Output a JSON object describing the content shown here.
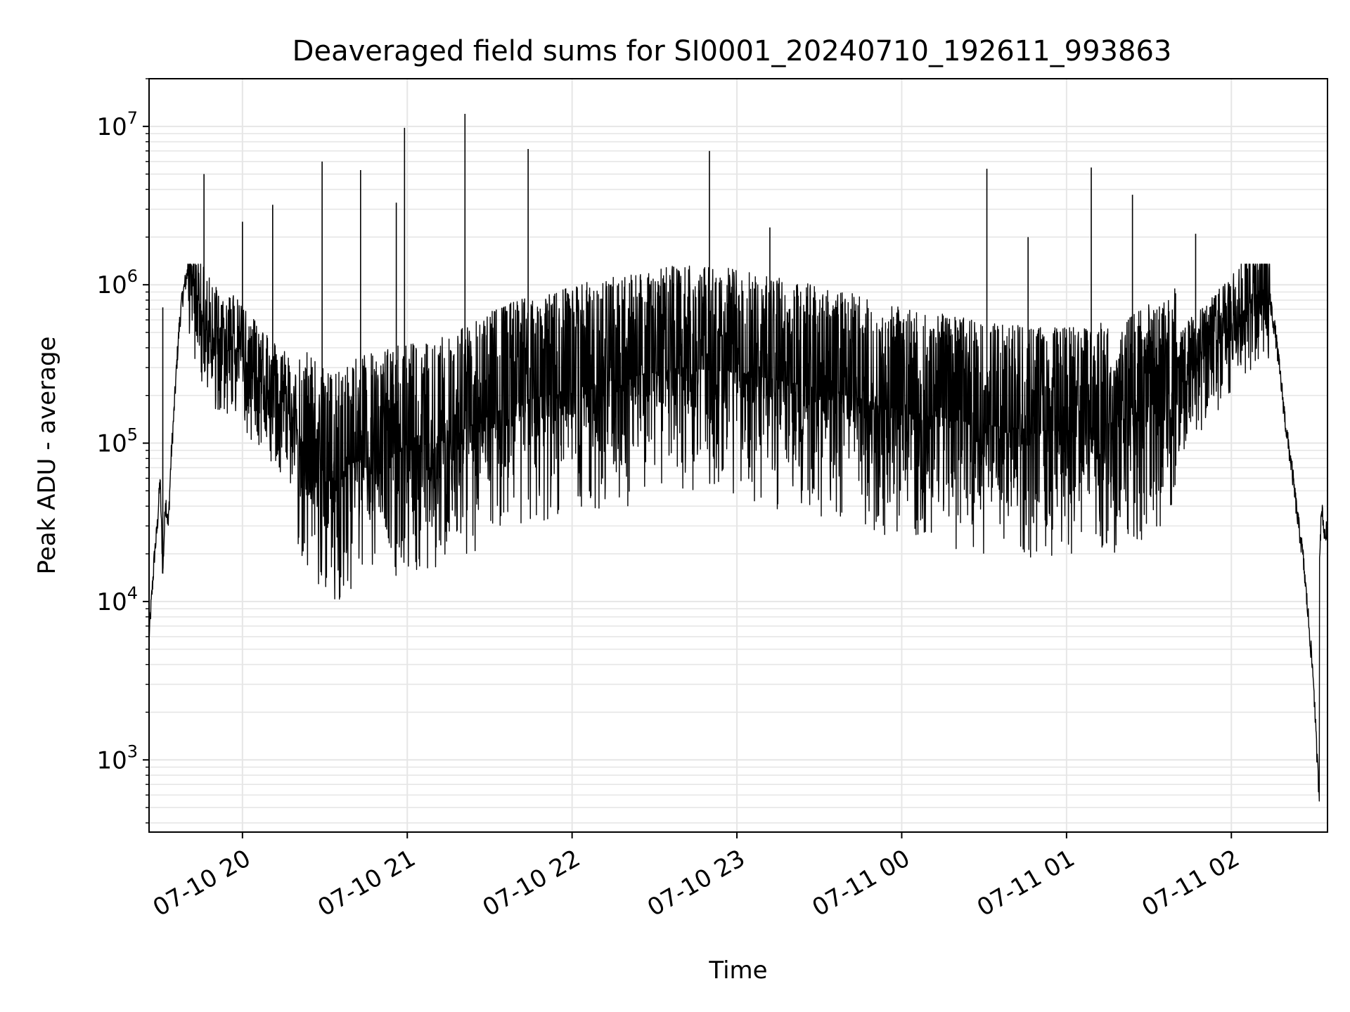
{
  "chart_data": {
    "type": "line",
    "title": "Deaveraged field sums for SI0001_20240710_192611_993863",
    "xlabel": "Time",
    "ylabel": "Peak ADU - average",
    "yscale": "log",
    "ylim": [
      350,
      20000000
    ],
    "xlim": [
      "2024-07-10T19:26",
      "2024-07-11T02:35"
    ],
    "x_ticks": [
      {
        "x": "2024-07-10T20:00",
        "label": "07-10 20"
      },
      {
        "x": "2024-07-10T21:00",
        "label": "07-10 21"
      },
      {
        "x": "2024-07-10T22:00",
        "label": "07-10 22"
      },
      {
        "x": "2024-07-10T23:00",
        "label": "07-10 23"
      },
      {
        "x": "2024-07-11T00:00",
        "label": "07-11 00"
      },
      {
        "x": "2024-07-11T01:00",
        "label": "07-11 01"
      },
      {
        "x": "2024-07-11T02:00",
        "label": "07-11 02"
      }
    ],
    "y_ticks": [
      {
        "value": 1000,
        "base": "10",
        "exp": "3"
      },
      {
        "value": 10000,
        "base": "10",
        "exp": "4"
      },
      {
        "value": 100000,
        "base": "10",
        "exp": "5"
      },
      {
        "value": 1000000,
        "base": "10",
        "exp": "6"
      },
      {
        "value": 10000000,
        "base": "10",
        "exp": "7"
      }
    ],
    "grid": true,
    "line_color": "#000000",
    "grid_color": "#e6e6e6",
    "series": [
      {
        "points": [
          [
            "2024-07-10T19:26",
            6000
          ],
          [
            "2024-07-10T19:27",
            11000
          ],
          [
            "2024-07-10T19:28",
            20000
          ],
          [
            "2024-07-10T19:29",
            30000
          ],
          [
            "2024-07-10T19:30",
            60000
          ],
          [
            "2024-07-10T19:31",
            15000
          ],
          [
            "2024-07-10T19:32",
            45000
          ],
          [
            "2024-07-10T19:33",
            30000
          ],
          [
            "2024-07-10T19:34",
            80000
          ],
          [
            "2024-07-10T19:35",
            150000
          ],
          [
            "2024-07-10T19:36",
            300000
          ],
          [
            "2024-07-10T19:37",
            550000
          ],
          [
            "2024-07-10T19:38",
            800000
          ],
          [
            "2024-07-10T19:39",
            1000000
          ],
          [
            "2024-07-10T19:40",
            1200000
          ],
          [
            "2024-07-10T19:42",
            1000000
          ],
          [
            "2024-07-10T19:44",
            800000
          ],
          [
            "2024-07-10T19:46",
            600000
          ],
          [
            "2024-07-10T19:48",
            500000
          ],
          [
            "2024-07-10T19:50",
            450000
          ],
          [
            "2024-07-10T19:52",
            400000
          ],
          [
            "2024-07-10T19:55",
            420000
          ],
          [
            "2024-07-10T19:58",
            380000
          ],
          [
            "2024-07-10T20:00",
            350000
          ],
          [
            "2024-07-10T20:03",
            300000
          ],
          [
            "2024-07-10T20:06",
            250000
          ],
          [
            "2024-07-10T20:09",
            220000
          ],
          [
            "2024-07-10T20:12",
            200000
          ],
          [
            "2024-07-10T20:15",
            180000
          ],
          [
            "2024-07-10T20:18",
            150000
          ],
          [
            "2024-07-10T20:21",
            110000
          ],
          [
            "2024-07-10T20:24",
            85000
          ],
          [
            "2024-07-10T20:27",
            75000
          ],
          [
            "2024-07-10T20:30",
            65000
          ],
          [
            "2024-07-10T20:33",
            60000
          ],
          [
            "2024-07-10T20:36",
            70000
          ],
          [
            "2024-07-10T20:40",
            75000
          ],
          [
            "2024-07-10T20:45",
            80000
          ],
          [
            "2024-07-10T20:50",
            85000
          ],
          [
            "2024-07-10T20:55",
            90000
          ],
          [
            "2024-07-10T21:00",
            95000
          ],
          [
            "2024-07-10T21:10",
            100000
          ],
          [
            "2024-07-10T21:20",
            120000
          ],
          [
            "2024-07-10T21:30",
            150000
          ],
          [
            "2024-07-10T21:40",
            180000
          ],
          [
            "2024-07-10T21:50",
            200000
          ],
          [
            "2024-07-10T22:00",
            220000
          ],
          [
            "2024-07-10T22:10",
            240000
          ],
          [
            "2024-07-10T22:20",
            260000
          ],
          [
            "2024-07-10T22:30",
            280000
          ],
          [
            "2024-07-10T22:40",
            300000
          ],
          [
            "2024-07-10T22:50",
            290000
          ],
          [
            "2024-07-10T23:00",
            280000
          ],
          [
            "2024-07-10T23:10",
            260000
          ],
          [
            "2024-07-10T23:20",
            240000
          ],
          [
            "2024-07-10T23:30",
            220000
          ],
          [
            "2024-07-10T23:40",
            200000
          ],
          [
            "2024-07-10T23:50",
            180000
          ],
          [
            "2024-07-11T00:00",
            160000
          ],
          [
            "2024-07-11T00:10",
            150000
          ],
          [
            "2024-07-11T00:20",
            140000
          ],
          [
            "2024-07-11T00:30",
            130000
          ],
          [
            "2024-07-11T00:40",
            125000
          ],
          [
            "2024-07-11T00:50",
            120000
          ],
          [
            "2024-07-11T01:00",
            120000
          ],
          [
            "2024-07-11T01:10",
            125000
          ],
          [
            "2024-07-11T01:20",
            140000
          ],
          [
            "2024-07-11T01:30",
            170000
          ],
          [
            "2024-07-11T01:40",
            220000
          ],
          [
            "2024-07-11T01:45",
            280000
          ],
          [
            "2024-07-11T01:50",
            350000
          ],
          [
            "2024-07-11T01:55",
            450000
          ],
          [
            "2024-07-11T02:00",
            550000
          ],
          [
            "2024-07-11T02:05",
            700000
          ],
          [
            "2024-07-11T02:08",
            850000
          ],
          [
            "2024-07-11T02:10",
            950000
          ],
          [
            "2024-07-11T02:12",
            900000
          ],
          [
            "2024-07-11T02:14",
            800000
          ],
          [
            "2024-07-11T02:16",
            500000
          ],
          [
            "2024-07-11T02:18",
            250000
          ],
          [
            "2024-07-11T02:20",
            120000
          ],
          [
            "2024-07-11T02:22",
            70000
          ],
          [
            "2024-07-11T02:24",
            35000
          ],
          [
            "2024-07-11T02:26",
            20000
          ],
          [
            "2024-07-11T02:28",
            8000
          ],
          [
            "2024-07-11T02:30",
            3000
          ],
          [
            "2024-07-11T02:31",
            1200
          ],
          [
            "2024-07-11T02:32",
            600
          ],
          [
            "2024-07-11T02:32",
            20000
          ],
          [
            "2024-07-11T02:33",
            40000
          ],
          [
            "2024-07-11T02:34",
            25000
          ],
          [
            "2024-07-11T02:35",
            30000
          ]
        ],
        "spikes": [
          [
            "2024-07-10T19:31",
            720000
          ],
          [
            "2024-07-10T19:46",
            5000000
          ],
          [
            "2024-07-10T20:00",
            2500000
          ],
          [
            "2024-07-10T20:11",
            3200000
          ],
          [
            "2024-07-10T20:29",
            6000000
          ],
          [
            "2024-07-10T20:43",
            5300000
          ],
          [
            "2024-07-10T20:56",
            3300000
          ],
          [
            "2024-07-10T20:59",
            9800000
          ],
          [
            "2024-07-10T21:21",
            12000000
          ],
          [
            "2024-07-10T21:44",
            7200000
          ],
          [
            "2024-07-10T22:37",
            1300000
          ],
          [
            "2024-07-10T22:50",
            7000000
          ],
          [
            "2024-07-10T23:12",
            2300000
          ],
          [
            "2024-07-11T00:31",
            5400000
          ],
          [
            "2024-07-11T00:46",
            2000000
          ],
          [
            "2024-07-11T01:09",
            5500000
          ],
          [
            "2024-07-11T01:24",
            3700000
          ],
          [
            "2024-07-11T01:47",
            2100000
          ]
        ]
      }
    ]
  }
}
